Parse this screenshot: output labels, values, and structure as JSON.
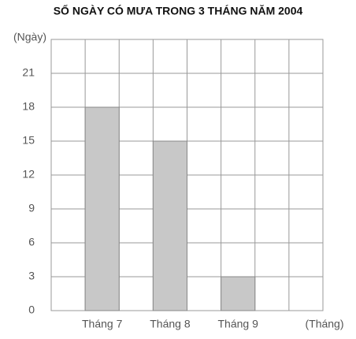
{
  "chart_data": {
    "type": "bar",
    "title": "SỐ NGÀY CÓ MƯA TRONG 3 THÁNG NĂM 2004",
    "y_label": "(Ngày)",
    "x_label": "(Tháng)",
    "categories": [
      "Tháng 7",
      "Tháng 8",
      "Tháng 9"
    ],
    "values": [
      18,
      15,
      3
    ],
    "color": "#c8c8c8",
    "ylim": [
      0,
      24
    ],
    "yticks": [
      0,
      3,
      6,
      9,
      12,
      15,
      18,
      21
    ],
    "grid": true
  }
}
